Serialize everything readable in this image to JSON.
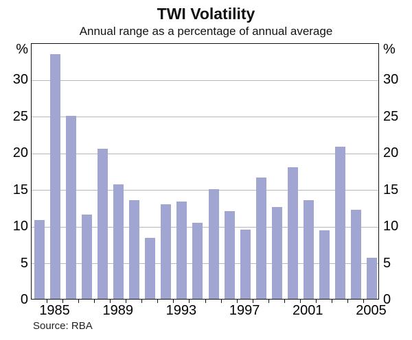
{
  "header": {
    "title": "TWI Volatility",
    "subtitle": "Annual range as a percentage of annual average"
  },
  "footer": {
    "source": "Source: RBA"
  },
  "axes": {
    "unit_label": "%",
    "y_ticks": [
      0,
      5,
      10,
      15,
      20,
      25,
      30
    ],
    "x_tick_labels": [
      "1985",
      "1989",
      "1993",
      "1997",
      "2001",
      "2005"
    ]
  },
  "colors": {
    "bar": "#a1a5d1",
    "gridline": "#b4b8bb",
    "axis": "#111111",
    "text": "#000000"
  },
  "chart_data": {
    "type": "bar",
    "title": "TWI Volatility",
    "subtitle": "Annual range as a percentage of annual average",
    "categories": [
      1984,
      1985,
      1986,
      1987,
      1988,
      1989,
      1990,
      1991,
      1992,
      1993,
      1994,
      1995,
      1996,
      1997,
      1998,
      1999,
      2000,
      2001,
      2002,
      2003,
      2004,
      2005
    ],
    "values": [
      10.8,
      33.4,
      25.0,
      11.5,
      20.5,
      15.6,
      13.5,
      8.3,
      12.9,
      13.3,
      10.4,
      15.0,
      12.0,
      9.5,
      16.6,
      12.5,
      18.0,
      13.5,
      9.4,
      20.8,
      12.2,
      5.6
    ],
    "xlabel": "",
    "ylabel": "%",
    "ylim": [
      0,
      35
    ],
    "gridline_interval": 5,
    "grid": "horizontal",
    "legend_position": "none",
    "labeled_years": [
      1985,
      1989,
      1993,
      1997,
      2001,
      2005
    ],
    "source": "Source: RBA"
  }
}
